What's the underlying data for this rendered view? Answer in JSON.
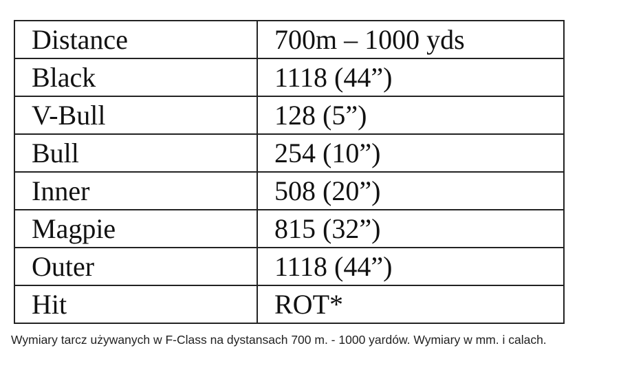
{
  "table": {
    "rows": [
      {
        "label": "Distance",
        "value": "700m – 1000 yds"
      },
      {
        "label": "Black",
        "value": "1118 (44”)"
      },
      {
        "label": "V-Bull",
        "value": "128 (5”)"
      },
      {
        "label": "Bull",
        "value": "254  (10”)"
      },
      {
        "label": "Inner",
        "value": "508  (20”)"
      },
      {
        "label": "Magpie",
        "value": "815  (32”)"
      },
      {
        "label": "Outer",
        "value": "1118 (44”)"
      },
      {
        "label": "Hit",
        "value": "ROT*"
      }
    ]
  },
  "caption": "Wymiary tarcz używanych w F-Class na dystansach 700 m. - 1000 yardów. Wymiary w mm. i calach."
}
